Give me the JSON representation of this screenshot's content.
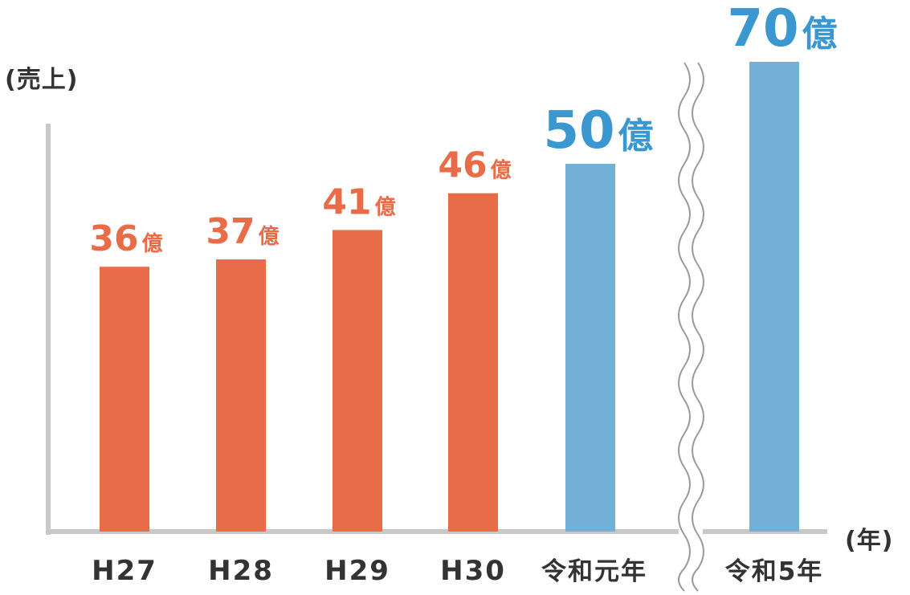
{
  "chart_data": {
    "type": "bar",
    "ylabel": "(売上)",
    "xlabel": "(年)",
    "unit": "億",
    "categories": [
      "H27",
      "H28",
      "H29",
      "H30",
      "令和元年",
      "令和5年"
    ],
    "values": [
      36,
      37,
      41,
      46,
      50,
      70
    ],
    "value_labels": [
      "36",
      "37",
      "41",
      "46",
      "50",
      "70"
    ],
    "axis_break_between": [
      "令和元年",
      "令和5年"
    ],
    "colors": {
      "actual": "#e86c47",
      "target": "#72b0d5",
      "target_label": "#3a97cf",
      "axis": "#c8c8c8",
      "text": "#333333"
    },
    "series_color_keys": [
      "actual",
      "actual",
      "actual",
      "actual",
      "target",
      "target"
    ],
    "grid": false
  }
}
